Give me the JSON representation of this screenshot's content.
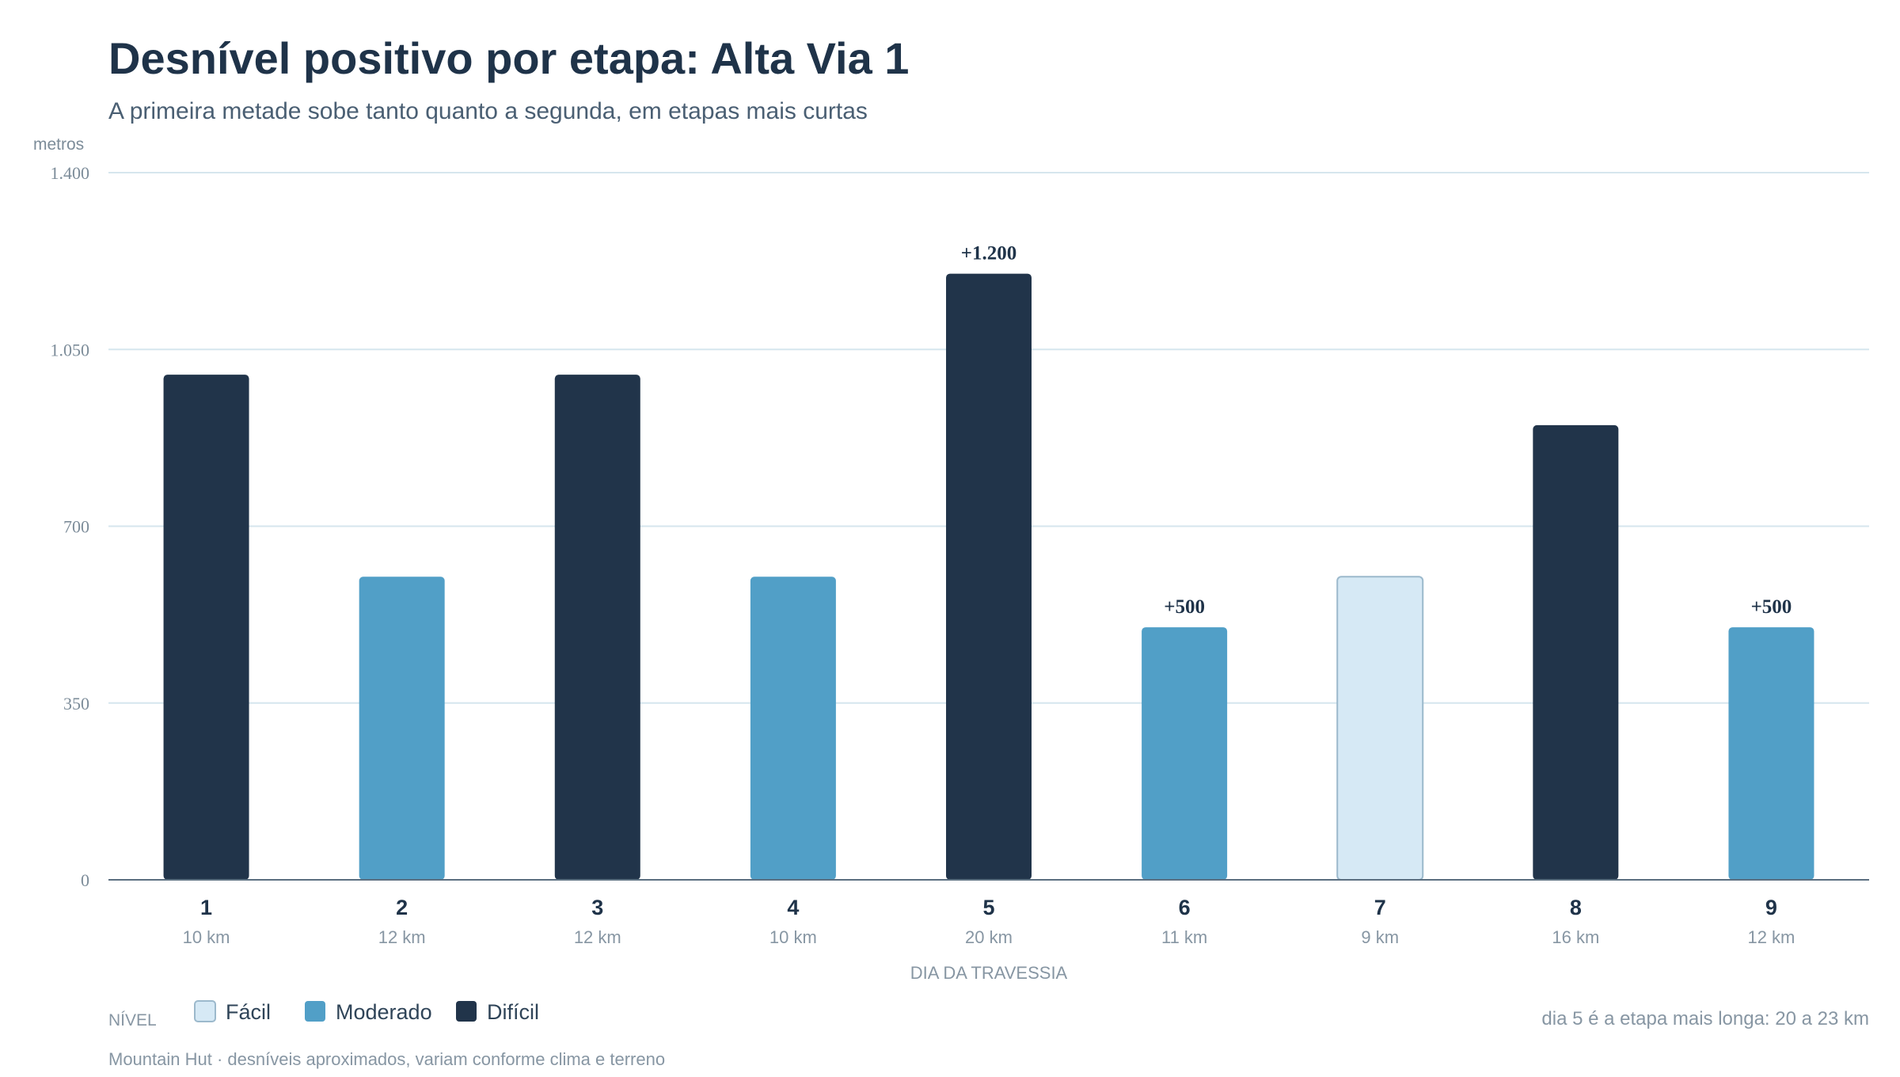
{
  "header": {
    "title": "Desnível positivo por etapa: Alta Via 1",
    "subtitle": "A primeira metade sobe tanto quanto a segunda, em etapas mais curtas"
  },
  "chart_data": {
    "type": "bar",
    "title": "Desnível positivo por etapa: Alta Via 1",
    "subtitle": "A primeira metade sobe tanto quanto a segunda, em etapas mais curtas",
    "xlabel": "DIA DA TRAVESSIA",
    "ylabel": "metros",
    "ylim": [
      0,
      1400
    ],
    "yticks": [
      0,
      350,
      700,
      1050,
      1400
    ],
    "ytick_labels": [
      "0",
      "350",
      "700",
      "1.050",
      "1.400"
    ],
    "grid": true,
    "categories": [
      "1",
      "2",
      "3",
      "4",
      "5",
      "6",
      "7",
      "8",
      "9"
    ],
    "sublabels": [
      "10 km",
      "12 km",
      "12 km",
      "10 km",
      "20 km",
      "11 km",
      "9 km",
      "16 km",
      "12 km"
    ],
    "values": [
      1000,
      600,
      1000,
      600,
      1200,
      500,
      600,
      900,
      500
    ],
    "levels": [
      "Difícil",
      "Moderado",
      "Difícil",
      "Moderado",
      "Difícil",
      "Moderado",
      "Fácil",
      "Difícil",
      "Moderado"
    ],
    "data_labels": [
      {
        "category": "5",
        "text": "+1.200"
      },
      {
        "category": "6",
        "text": "+500"
      },
      {
        "category": "9",
        "text": "+500"
      }
    ],
    "legend": {
      "title": "NÍVEL",
      "placement": "bottom-left",
      "entries": [
        {
          "name": "Fácil",
          "color": "#d6e9f5",
          "stroke": "#9cb9cc"
        },
        {
          "name": "Moderado",
          "color": "#519fc7"
        },
        {
          "name": "Difícil",
          "color": "#21344a"
        }
      ]
    },
    "annotation": "dia 5 é a etapa mais longa: 20 a 23 km",
    "colors": {
      "grid": "#d6e6ee",
      "axis": "#5b6f80",
      "tick_text": "#7c8c99",
      "title": "#1f3349",
      "subtitle": "#4a5f73",
      "category_text": "#1f3349",
      "muted_text": "#8796a3"
    }
  },
  "footer": {
    "source": "Mountain Hut · desníveis aproximados, variam conforme clima e terreno"
  }
}
